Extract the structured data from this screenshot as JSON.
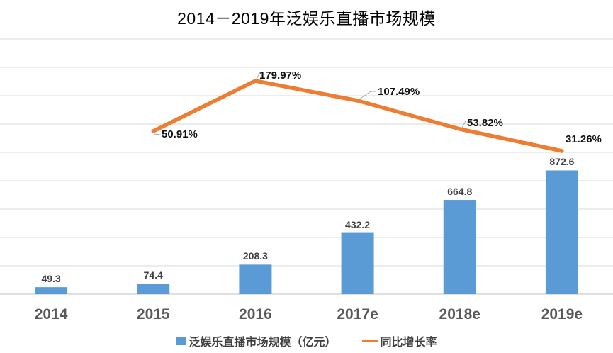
{
  "title": "2014－2019年泛娱乐直播市场规模",
  "colors": {
    "bar": "#5B9BD5",
    "line": "#ED7D31",
    "grid": "#D9D9D9",
    "axis": "#BFBFBF",
    "leader": "#A6A6A6",
    "bar_label": "#404040",
    "axis_label": "#595959"
  },
  "legend": [
    {
      "label": "泛娱乐直播市场规模（亿元）",
      "marker": "square",
      "color": "#5B9BD5"
    },
    {
      "label": "同比增长率",
      "marker": "line",
      "color": "#ED7D31"
    }
  ],
  "chart_data": {
    "type": "bar+line combo",
    "title": "2014－2019年泛娱乐直播市场规模",
    "categories": [
      "2014",
      "2015",
      "2016",
      "2017e",
      "2018e",
      "2019e"
    ],
    "series": [
      {
        "name": "泛娱乐直播市场规模（亿元）",
        "type": "bar",
        "values": [
          49.3,
          74.4,
          208.3,
          432.2,
          664.8,
          872.6
        ],
        "labels": [
          "49.3",
          "74.4",
          "208.3",
          "432.2",
          "664.8",
          "872.6"
        ]
      },
      {
        "name": "同比增长率",
        "type": "line",
        "unit": "%",
        "values": [
          null,
          50.91,
          179.97,
          107.49,
          53.82,
          31.26
        ],
        "labels": [
          null,
          "50.91%",
          "179.97%",
          "107.49%",
          "53.82%",
          "31.26%"
        ]
      }
    ],
    "y_axis": {
      "visible": false,
      "min": 0,
      "max": 1800,
      "gridline_step": 200
    },
    "y2_axis": {
      "visible": false
    },
    "grid": true,
    "legend_position": "bottom"
  }
}
